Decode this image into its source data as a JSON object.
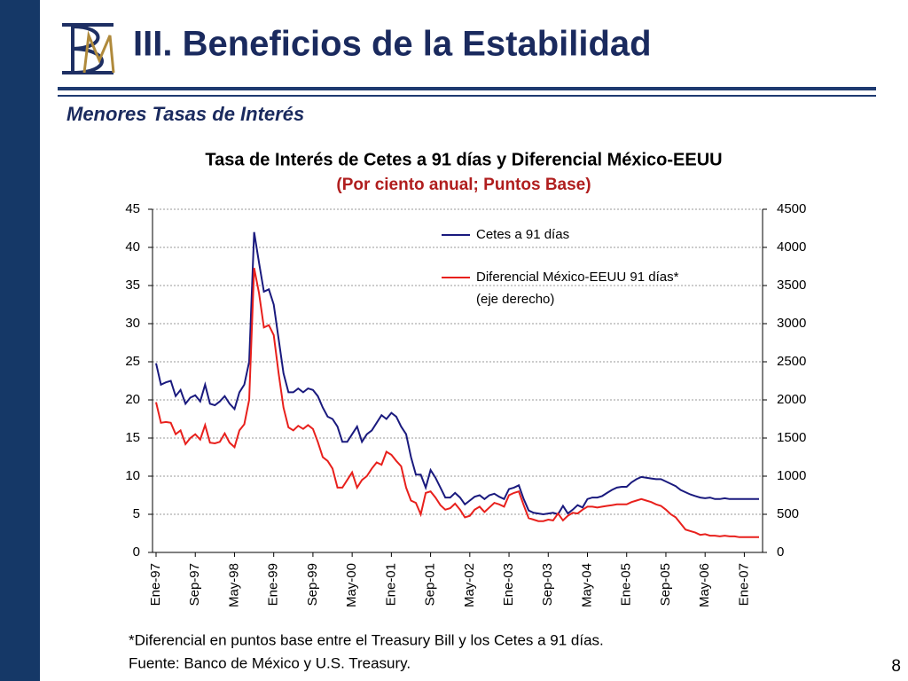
{
  "slide": {
    "title": "III. Beneficios de la Estabilidad",
    "subtitle": "Menores Tasas de Interés",
    "footnotes": [
      "*Diferencial en puntos base entre el Treasury Bill y los Cetes a 91 días.",
      "Fuente: Banco de México y U.S. Treasury."
    ],
    "page_number": "8"
  },
  "chart_data": {
    "type": "line",
    "title": "Tasa de Interés de Cetes a 91 días y Diferencial México-EEUU",
    "subtitle": "(Por ciento anual; Puntos Base)",
    "legend_note": "(eje derecho)",
    "legend": "upper right",
    "grid": true,
    "categories": [
      "Ene-97",
      null,
      null,
      null,
      null,
      null,
      null,
      null,
      "Sep-97",
      null,
      null,
      null,
      null,
      null,
      null,
      null,
      "May-98",
      null,
      null,
      null,
      null,
      null,
      null,
      null,
      "Ene-99",
      null,
      null,
      null,
      null,
      null,
      null,
      null,
      "Sep-99",
      null,
      null,
      null,
      null,
      null,
      null,
      null,
      "May-00",
      null,
      null,
      null,
      null,
      null,
      null,
      null,
      "Ene-01",
      null,
      null,
      null,
      null,
      null,
      null,
      null,
      "Sep-01",
      null,
      null,
      null,
      null,
      null,
      null,
      null,
      "May-02",
      null,
      null,
      null,
      null,
      null,
      null,
      null,
      "Ene-03",
      null,
      null,
      null,
      null,
      null,
      null,
      null,
      "Sep-03",
      null,
      null,
      null,
      null,
      null,
      null,
      null,
      "May-04",
      null,
      null,
      null,
      null,
      null,
      null,
      null,
      "Ene-05",
      null,
      null,
      null,
      null,
      null,
      null,
      null,
      "Sep-05",
      null,
      null,
      null,
      null,
      null,
      null,
      null,
      "May-06",
      null,
      null,
      null,
      null,
      null,
      null,
      null,
      "Ene-07",
      null,
      null,
      null
    ],
    "ylim": [
      0,
      45
    ],
    "yticks": [
      0,
      5,
      10,
      15,
      20,
      25,
      30,
      35,
      40,
      45
    ],
    "y2lim": [
      0,
      4500
    ],
    "y2ticks": [
      0,
      500,
      1000,
      1500,
      2000,
      2500,
      3000,
      3500,
      4000,
      4500
    ],
    "series": [
      {
        "name": "Cetes a 91 días",
        "color": "#1a1a7e",
        "values": [
          24.8,
          22,
          22.3,
          22.5,
          20.5,
          21.3,
          19.5,
          20.3,
          20.6,
          19.8,
          22,
          19.5,
          19.3,
          19.8,
          20.5,
          19.5,
          18.8,
          21,
          22,
          25,
          42,
          38,
          34.2,
          34.5,
          32.5,
          28,
          23.5,
          21,
          21,
          21.5,
          21,
          21.5,
          21.3,
          20.5,
          19,
          17.8,
          17.5,
          16.5,
          14.5,
          14.5,
          15.5,
          16.5,
          14.5,
          15.5,
          16,
          17,
          18,
          17.5,
          18.3,
          17.8,
          16.5,
          15.5,
          12.5,
          10.2,
          10.2,
          8.5,
          10.8,
          9.8,
          8.5,
          7.2,
          7.2,
          7.8,
          7.2,
          6.3,
          6.8,
          7.3,
          7.5,
          7.0,
          7.5,
          7.7,
          7.3,
          7.0,
          8.3,
          8.5,
          8.8,
          7.0,
          5.5,
          5.2,
          5.1,
          5.0,
          5.1,
          5.2,
          5.0,
          6.1,
          5.1,
          5.6,
          6.2,
          5.9,
          7.0,
          7.2,
          7.2,
          7.4,
          7.8,
          8.2,
          8.5,
          8.6,
          8.6,
          9.2,
          9.6,
          9.9,
          9.8,
          9.7,
          9.6,
          9.6,
          9.3,
          9.0,
          8.7,
          8.2,
          7.9,
          7.6,
          7.4,
          7.2,
          7.1,
          7.2,
          7.0,
          7.0,
          7.1,
          7.0,
          7.0,
          7.0,
          7.0,
          7.0,
          7.0,
          7.0
        ]
      },
      {
        "name": "Diferencial México-EEUU 91 días*",
        "color": "#e8201c",
        "axis": "y2",
        "values": [
          1970,
          1700,
          1710,
          1700,
          1550,
          1600,
          1420,
          1500,
          1550,
          1480,
          1670,
          1440,
          1430,
          1450,
          1560,
          1440,
          1380,
          1600,
          1680,
          2000,
          3730,
          3400,
          2950,
          2980,
          2850,
          2350,
          1900,
          1640,
          1600,
          1660,
          1620,
          1670,
          1620,
          1450,
          1250,
          1200,
          1100,
          850,
          850,
          950,
          1050,
          850,
          950,
          1000,
          1100,
          1180,
          1150,
          1320,
          1280,
          1200,
          1130,
          850,
          680,
          650,
          500,
          780,
          800,
          720,
          620,
          560,
          580,
          640,
          560,
          460,
          480,
          560,
          600,
          530,
          590,
          650,
          630,
          600,
          750,
          780,
          800,
          620,
          450,
          430,
          410,
          410,
          430,
          420,
          510,
          420,
          480,
          520,
          510,
          560,
          600,
          600,
          590,
          600,
          610,
          620,
          630,
          630,
          630,
          660,
          680,
          700,
          680,
          660,
          630,
          610,
          560,
          500,
          460,
          380,
          300,
          280,
          260,
          230,
          240,
          220,
          220,
          210,
          220,
          210,
          210,
          200,
          200,
          200,
          200,
          200
        ]
      }
    ]
  }
}
